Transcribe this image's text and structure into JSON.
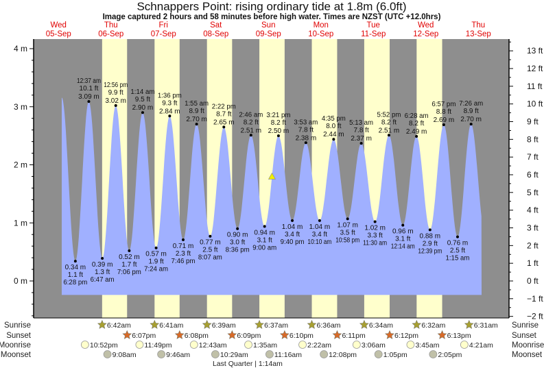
{
  "title": "Schnappers Point: rising  ordinary tide at 1.8m (6.0ft)",
  "subtitle": "Image captured 2 hours and 58 minutes before high water. Times are NZST (UTC +12.0hrs)",
  "days": [
    {
      "dow": "Wed",
      "date": "05-Sep"
    },
    {
      "dow": "Thu",
      "date": "06-Sep"
    },
    {
      "dow": "Fri",
      "date": "07-Sep"
    },
    {
      "dow": "Sat",
      "date": "08-Sep"
    },
    {
      "dow": "Sun",
      "date": "09-Sep"
    },
    {
      "dow": "Mon",
      "date": "10-Sep"
    },
    {
      "dow": "Tue",
      "date": "11-Sep"
    },
    {
      "dow": "Wed",
      "date": "12-Sep"
    },
    {
      "dow": "Thu",
      "date": "13-Sep"
    }
  ],
  "colors": {
    "night": "#8e8e8e",
    "day": "#ffffcc",
    "water": "#a0b0ff",
    "date": "#e00000",
    "sunrise": "#a8a030",
    "sunset": "#d86a28",
    "moonrise": "#ffffcc",
    "moonset": "#c0c0a8",
    "marker": "#f0f000"
  },
  "chart_data": {
    "type": "area",
    "title": "Schnappers Point: rising  ordinary tide at 1.8m (6.0ft)",
    "ylabel_left": "m",
    "ylabel_right": "ft",
    "ylim_m": [
      -0.6,
      4.3
    ],
    "yticks_m": [
      "0 m",
      "1 m",
      "2 m",
      "3 m",
      "4 m"
    ],
    "yticks_ft": [
      "−2 ft",
      "−1 ft",
      "0 ft",
      "1 ft",
      "2 ft",
      "3 ft",
      "4 ft",
      "5 ft",
      "6 ft",
      "7 ft",
      "8 ft",
      "9 ft",
      "10 ft",
      "11 ft",
      "12 ft",
      "13 ft"
    ],
    "start": {
      "day": 0,
      "time": "12:14 pm",
      "m": 3.16
    },
    "end": {
      "day": 8,
      "time": "1:45 pm",
      "m": 0.84
    },
    "current": {
      "day": 4,
      "time": "12:23 pm",
      "m": 1.8,
      "state": "rising"
    },
    "extremes": [
      {
        "type": "low",
        "day": 0,
        "time": "6:28 pm",
        "m": "0.34 m",
        "ft": "1.1 ft",
        "v": 0.34
      },
      {
        "type": "high",
        "day": 1,
        "time": "12:37 am",
        "m": "3.09 m",
        "ft": "10.1 ft",
        "v": 3.09
      },
      {
        "type": "low",
        "day": 1,
        "time": "6:47 am",
        "m": "0.39 m",
        "ft": "1.3 ft",
        "v": 0.39
      },
      {
        "type": "high",
        "day": 1,
        "time": "12:56 pm",
        "m": "3.02 m",
        "ft": "9.9 ft",
        "v": 3.02
      },
      {
        "type": "low",
        "day": 1,
        "time": "7:06 pm",
        "m": "0.52 m",
        "ft": "1.7 ft",
        "v": 0.52
      },
      {
        "type": "high",
        "day": 2,
        "time": "1:14 am",
        "m": "2.90 m",
        "ft": "9.5 ft",
        "v": 2.9
      },
      {
        "type": "low",
        "day": 2,
        "time": "7:24 am",
        "m": "0.57 m",
        "ft": "1.9 ft",
        "v": 0.57
      },
      {
        "type": "high",
        "day": 2,
        "time": "1:36 pm",
        "m": "2.84 m",
        "ft": "9.3 ft",
        "v": 2.84
      },
      {
        "type": "low",
        "day": 2,
        "time": "7:46 pm",
        "m": "0.71 m",
        "ft": "2.3 ft",
        "v": 0.71
      },
      {
        "type": "high",
        "day": 3,
        "time": "1:55 am",
        "m": "2.70 m",
        "ft": "8.9 ft",
        "v": 2.7
      },
      {
        "type": "low",
        "day": 3,
        "time": "8:07 am",
        "m": "0.77 m",
        "ft": "2.5 ft",
        "v": 0.77
      },
      {
        "type": "high",
        "day": 3,
        "time": "2:22 pm",
        "m": "2.65 m",
        "ft": "8.7 ft",
        "v": 2.65
      },
      {
        "type": "low",
        "day": 3,
        "time": "8:36 pm",
        "m": "0.90 m",
        "ft": "3.0 ft",
        "v": 0.9
      },
      {
        "type": "high",
        "day": 4,
        "time": "2:46 am",
        "m": "2.51 m",
        "ft": "8.2 ft",
        "v": 2.51
      },
      {
        "type": "low",
        "day": 4,
        "time": "9:00 am",
        "m": "0.94 m",
        "ft": "3.1 ft",
        "v": 0.94
      },
      {
        "type": "high",
        "day": 4,
        "time": "3:21 pm",
        "m": "2.50 m",
        "ft": "8.2 ft",
        "v": 2.5
      },
      {
        "type": "low",
        "day": 4,
        "time": "9:40 pm",
        "m": "1.04 m",
        "ft": "3.4 ft",
        "v": 1.04
      },
      {
        "type": "high",
        "day": 5,
        "time": "3:53 am",
        "m": "2.38 m",
        "ft": "7.8 ft",
        "v": 2.38
      },
      {
        "type": "low",
        "day": 5,
        "time": "10:10 am",
        "m": "1.04 m",
        "ft": "3.4 ft",
        "v": 1.04
      },
      {
        "type": "high",
        "day": 5,
        "time": "4:35 pm",
        "m": "2.44 m",
        "ft": "8.0 ft",
        "v": 2.44
      },
      {
        "type": "low",
        "day": 5,
        "time": "10:58 pm",
        "m": "1.07 m",
        "ft": "3.5 ft",
        "v": 1.07
      },
      {
        "type": "high",
        "day": 6,
        "time": "5:13 am",
        "m": "2.37 m",
        "ft": "7.8 ft",
        "v": 2.37
      },
      {
        "type": "low",
        "day": 6,
        "time": "11:30 am",
        "m": "1.02 m",
        "ft": "3.3 ft",
        "v": 1.02
      },
      {
        "type": "high",
        "day": 6,
        "time": "5:52 pm",
        "m": "2.51 m",
        "ft": "8.2 ft",
        "v": 2.51
      },
      {
        "type": "low",
        "day": 7,
        "time": "12:14 am",
        "m": "0.96 m",
        "ft": "3.1 ft",
        "v": 0.96
      },
      {
        "type": "high",
        "day": 7,
        "time": "6:28 am",
        "m": "2.49 m",
        "ft": "8.2 ft",
        "v": 2.49
      },
      {
        "type": "low",
        "day": 7,
        "time": "12:39 pm",
        "m": "0.88 m",
        "ft": "2.9 ft",
        "v": 0.88
      },
      {
        "type": "high",
        "day": 7,
        "time": "6:57 pm",
        "m": "2.69 m",
        "ft": "8.8 ft",
        "v": 2.69
      },
      {
        "type": "low",
        "day": 8,
        "time": "1:15 am",
        "m": "0.76 m",
        "ft": "2.5 ft",
        "v": 0.76
      },
      {
        "type": "high",
        "day": 8,
        "time": "7:26 am",
        "m": "2.70 m",
        "ft": "8.9 ft",
        "v": 2.7
      }
    ]
  },
  "almanac": {
    "labels": {
      "sunrise": "Sunrise",
      "sunset": "Sunset",
      "moonrise": "Moonrise",
      "moonset": "Moonset"
    },
    "sunrise": [
      {
        "day": 1,
        "time": "6:42am"
      },
      {
        "day": 2,
        "time": "6:41am"
      },
      {
        "day": 3,
        "time": "6:39am"
      },
      {
        "day": 4,
        "time": "6:37am"
      },
      {
        "day": 5,
        "time": "6:36am"
      },
      {
        "day": 6,
        "time": "6:34am"
      },
      {
        "day": 7,
        "time": "6:32am"
      },
      {
        "day": 8,
        "time": "6:31am"
      }
    ],
    "sunset": [
      {
        "day": 1,
        "time": "6:07pm"
      },
      {
        "day": 2,
        "time": "6:08pm"
      },
      {
        "day": 3,
        "time": "6:09pm"
      },
      {
        "day": 4,
        "time": "6:10pm"
      },
      {
        "day": 5,
        "time": "6:11pm"
      },
      {
        "day": 6,
        "time": "6:12pm"
      },
      {
        "day": 7,
        "time": "6:13pm"
      }
    ],
    "moonrise": [
      {
        "day": 0,
        "time": "10:52pm"
      },
      {
        "day": 1,
        "time": "11:49pm"
      },
      {
        "day": 3,
        "time": "12:43am"
      },
      {
        "day": 4,
        "time": "1:35am"
      },
      {
        "day": 5,
        "time": "2:22am"
      },
      {
        "day": 6,
        "time": "3:06am"
      },
      {
        "day": 7,
        "time": "3:45am"
      },
      {
        "day": 8,
        "time": "4:21am"
      }
    ],
    "moonset": [
      {
        "day": 1,
        "time": "9:08am"
      },
      {
        "day": 2,
        "time": "9:46am"
      },
      {
        "day": 3,
        "time": "10:29am"
      },
      {
        "day": 4,
        "time": "11:16am"
      },
      {
        "day": 5,
        "time": "12:08pm"
      },
      {
        "day": 6,
        "time": "1:05pm"
      },
      {
        "day": 7,
        "time": "2:05pm"
      }
    ],
    "moon_phase": {
      "day": 4,
      "time": "1:14am",
      "text": "Last Quarter | 1:14am"
    }
  }
}
